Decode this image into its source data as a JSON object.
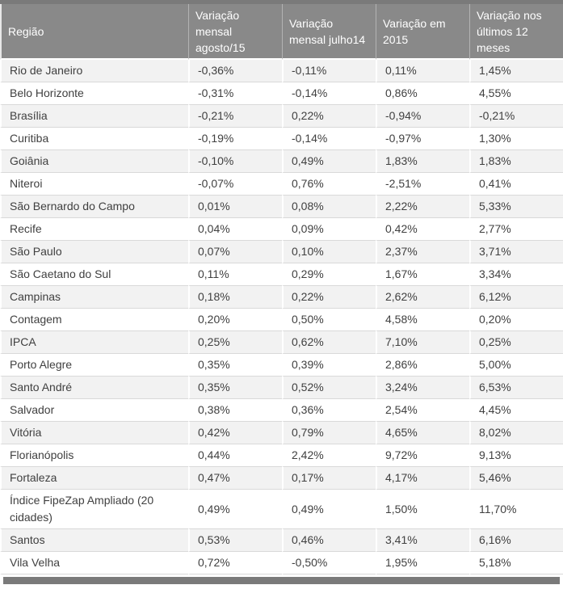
{
  "colors": {
    "bar_color": "#7a7a7a",
    "header_bg": "#898989",
    "header_text": "#ffffff",
    "row_alt_bg": "#f2f2f2",
    "grid_color": "#d9d9d9",
    "text_color": "#404040"
  },
  "chart_data": {
    "type": "table",
    "title": "",
    "columns": [
      "Região",
      "Variação mensal agosto/15",
      "Variação mensal julho14",
      "Variação em 2015",
      "Variação nos últimos 12 meses"
    ],
    "rows": [
      {
        "region": "Rio de Janeiro",
        "values": [
          "-0,36%",
          "-0,11%",
          "0,11%",
          "1,45%"
        ]
      },
      {
        "region": "Belo Horizonte",
        "values": [
          "-0,31%",
          "-0,14%",
          "0,86%",
          "4,55%"
        ]
      },
      {
        "region": "Brasília",
        "values": [
          "-0,21%",
          "0,22%",
          "-0,94%",
          "-0,21%"
        ]
      },
      {
        "region": "Curitiba",
        "values": [
          "-0,19%",
          "-0,14%",
          "-0,97%",
          "1,30%"
        ]
      },
      {
        "region": "Goiânia",
        "values": [
          "-0,10%",
          "0,49%",
          "1,83%",
          "1,83%"
        ]
      },
      {
        "region": "Niteroi",
        "values": [
          "-0,07%",
          "0,76%",
          "-2,51%",
          "0,41%"
        ]
      },
      {
        "region": "São Bernardo do Campo",
        "values": [
          "0,01%",
          "0,08%",
          "2,22%",
          "5,33%"
        ]
      },
      {
        "region": "Recife",
        "values": [
          "0,04%",
          "0,09%",
          "0,42%",
          "2,77%"
        ]
      },
      {
        "region": "São Paulo",
        "values": [
          "0,07%",
          "0,10%",
          "2,37%",
          "3,71%"
        ]
      },
      {
        "region": "São Caetano do Sul",
        "values": [
          "0,11%",
          "0,29%",
          "1,67%",
          "3,34%"
        ]
      },
      {
        "region": "Campinas",
        "values": [
          "0,18%",
          "0,22%",
          "2,62%",
          "6,12%"
        ]
      },
      {
        "region": "Contagem",
        "values": [
          "0,20%",
          "0,50%",
          "4,58%",
          "0,20%"
        ]
      },
      {
        "region": "IPCA",
        "values": [
          "0,25%",
          "0,62%",
          "7,10%",
          "0,25%"
        ]
      },
      {
        "region": "Porto Alegre",
        "values": [
          "0,35%",
          "0,39%",
          "2,86%",
          "5,00%"
        ]
      },
      {
        "region": "Santo André",
        "values": [
          "0,35%",
          "0,52%",
          "3,24%",
          "6,53%"
        ]
      },
      {
        "region": "Salvador",
        "values": [
          "0,38%",
          "0,36%",
          "2,54%",
          "4,45%"
        ]
      },
      {
        "region": "Vitória",
        "values": [
          "0,42%",
          "0,79%",
          "4,65%",
          "8,02%"
        ]
      },
      {
        "region": "Florianópolis",
        "values": [
          "0,44%",
          "2,42%",
          "9,72%",
          "9,13%"
        ]
      },
      {
        "region": "Fortaleza",
        "values": [
          "0,47%",
          "0,17%",
          "4,17%",
          "5,46%"
        ]
      },
      {
        "region": "Índice FipeZap Ampliado (20 cidades)",
        "values": [
          "0,49%",
          "0,49%",
          "1,50%",
          "11,70%"
        ]
      },
      {
        "region": "Santos",
        "values": [
          "0,53%",
          "0,46%",
          "3,41%",
          "6,16%"
        ]
      },
      {
        "region": "Vila Velha",
        "values": [
          "0,72%",
          "-0,50%",
          "1,95%",
          "5,18%"
        ]
      }
    ]
  }
}
